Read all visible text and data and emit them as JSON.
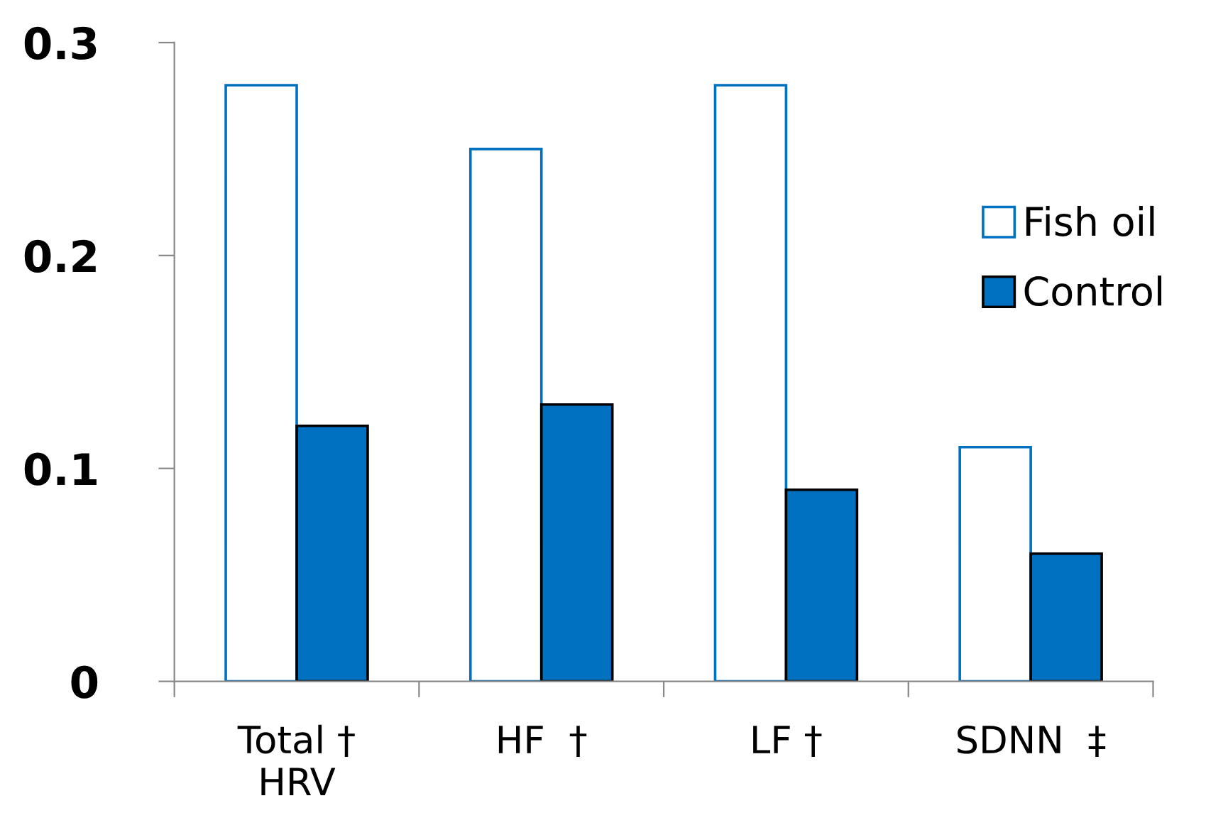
{
  "chart_data": {
    "type": "bar",
    "categories": [
      "Total †\nHRV",
      "HF  †",
      "LF †",
      "SDNN  ‡"
    ],
    "series": [
      {
        "name": "Fish oil",
        "color": "#ffffff",
        "values": [
          0.28,
          0.25,
          0.28,
          0.11
        ]
      },
      {
        "name": "Control",
        "color": "#0070c0",
        "values": [
          0.12,
          0.13,
          0.09,
          0.06
        ]
      }
    ],
    "ylim": [
      0,
      0.3
    ],
    "yticks": [
      {
        "value": 0,
        "label": "0"
      },
      0.1,
      0.2,
      0.3
    ],
    "grid": false,
    "legend": "right"
  }
}
